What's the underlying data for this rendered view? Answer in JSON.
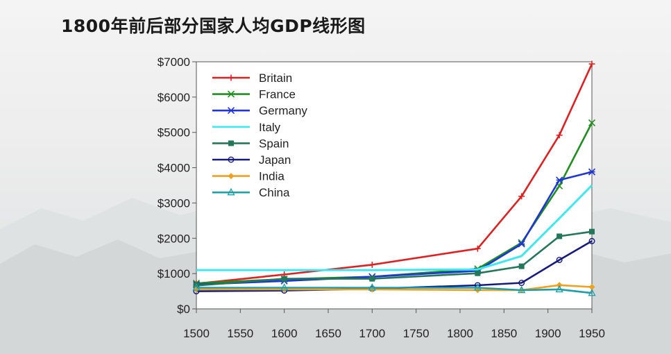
{
  "page": {
    "title": "1800年前后部分国家人均GDP线形图"
  },
  "chart_data": {
    "type": "line",
    "title": "1800年前后部分国家人均GDP线形图",
    "xlabel": "",
    "ylabel": "",
    "xlim": [
      1500,
      1950
    ],
    "ylim": [
      0,
      7000
    ],
    "x_ticks": [
      1500,
      1550,
      1600,
      1650,
      1700,
      1750,
      1800,
      1850,
      1900,
      1950
    ],
    "y_ticks": [
      0,
      1000,
      2000,
      3000,
      4000,
      5000,
      6000,
      7000
    ],
    "y_tick_labels": [
      "$0",
      "$1000",
      "$2000",
      "$3000",
      "$4000",
      "$5000",
      "$6000",
      "$7000"
    ],
    "x_tick_labels": [
      "1500",
      "1550",
      "1600",
      "1650",
      "1700",
      "1750",
      "1800",
      "1850",
      "1900",
      "1950"
    ],
    "grid": false,
    "legend_position": "top-left",
    "series": [
      {
        "name": "Britain",
        "color": "#e02020",
        "marker": "plus",
        "x": [
          1500,
          1600,
          1700,
          1820,
          1870,
          1913,
          1950
        ],
        "y": [
          714,
          974,
          1250,
          1706,
          3190,
          4921,
          6939
        ]
      },
      {
        "name": "France",
        "color": "#1e8f1e",
        "marker": "x",
        "x": [
          1500,
          1600,
          1700,
          1820,
          1870,
          1913,
          1950
        ],
        "y": [
          727,
          841,
          910,
          1135,
          1876,
          3485,
          5271
        ]
      },
      {
        "name": "Germany",
        "color": "#1f35d8",
        "marker": "asterisk",
        "x": [
          1500,
          1600,
          1700,
          1820,
          1870,
          1913,
          1950
        ],
        "y": [
          688,
          791,
          910,
          1077,
          1839,
          3648,
          3881
        ]
      },
      {
        "name": "Italy",
        "color": "#3fe8f0",
        "marker": "none",
        "x": [
          1500,
          1600,
          1700,
          1820,
          1870,
          1913,
          1950
        ],
        "y": [
          1100,
          1100,
          1100,
          1117,
          1499,
          2564,
          3502
        ]
      },
      {
        "name": "Spain",
        "color": "#23775a",
        "marker": "square",
        "x": [
          1500,
          1600,
          1700,
          1820,
          1870,
          1913,
          1950
        ],
        "y": [
          661,
          853,
          853,
          1008,
          1207,
          2056,
          2189
        ]
      },
      {
        "name": "Japan",
        "color": "#151a80",
        "marker": "circle",
        "x": [
          1500,
          1600,
          1700,
          1820,
          1870,
          1913,
          1950
        ],
        "y": [
          500,
          520,
          570,
          669,
          737,
          1387,
          1921
        ]
      },
      {
        "name": "India",
        "color": "#f0a020",
        "marker": "diamond",
        "x": [
          1500,
          1600,
          1700,
          1820,
          1870,
          1913,
          1950
        ],
        "y": [
          550,
          550,
          550,
          533,
          533,
          673,
          619
        ]
      },
      {
        "name": "China",
        "color": "#1e9fa8",
        "marker": "triangle",
        "x": [
          1500,
          1600,
          1700,
          1820,
          1870,
          1913,
          1950
        ],
        "y": [
          600,
          600,
          600,
          600,
          530,
          552,
          448
        ]
      }
    ]
  }
}
